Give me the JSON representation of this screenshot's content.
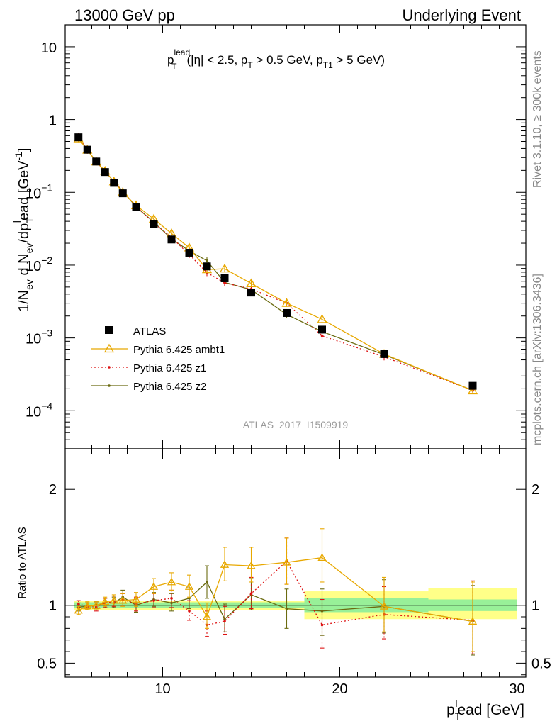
{
  "header": {
    "left": "13000 GeV pp",
    "right": "Underlying Event"
  },
  "side_labels": {
    "rivet": "Rivet 3.1.10, ≥ 300k events",
    "mcplots": "mcplots.cern.ch [arXiv:1306.3436]"
  },
  "analysis_id": "ATLAS_2017_I1509919",
  "colors": {
    "atlas": "#000000",
    "ambt1": "#e8a800",
    "z1": "#dd1111",
    "z2": "#6b6b10",
    "band_inner": "#98f098",
    "band_outer": "#ffff88"
  },
  "chart_data": [
    {
      "panel": "main",
      "type": "scatter",
      "title": "p_T^lead (|η| < 2.5, p_T > 0.5 GeV, p_T1 > 5 GeV)",
      "title_parts": {
        "p": "p",
        "lead": "lead",
        "T": "T",
        "body1": "(|η| < 2.5, p",
        "body2": " > 0.5 GeV, p",
        "T1": "T1",
        "body3": " > 5 GeV)"
      },
      "ylabel_parts": {
        "a": "1/N",
        "ev": "ev",
        "b": " d N",
        "c": "/dp",
        "T": "T",
        "l": "l",
        "d": "ead [GeV",
        "m1": "-1",
        "e": "]"
      },
      "y_scale": "log",
      "xlim": [
        4.5,
        30.5
      ],
      "ylim": [
        3e-05,
        20
      ],
      "y_ticks": [
        {
          "v": 10,
          "m": "10",
          "e": ""
        },
        {
          "v": 1,
          "m": "1",
          "e": ""
        },
        {
          "v": 0.1,
          "m": "10",
          "e": "−1"
        },
        {
          "v": 0.01,
          "m": "10",
          "e": "−2"
        },
        {
          "v": 0.001,
          "m": "10",
          "e": "−3"
        },
        {
          "v": 0.0001,
          "m": "10",
          "e": "−4"
        }
      ],
      "legend": {
        "position": "left-center",
        "entries": [
          "ATLAS",
          "Pythia 6.425 ambt1",
          "Pythia 6.425 z1",
          "Pythia 6.425 z2"
        ]
      },
      "series": [
        {
          "name": "ATLAS",
          "points": [
            {
              "x": 5.25,
              "y": 0.57
            },
            {
              "x": 5.75,
              "y": 0.385
            },
            {
              "x": 6.25,
              "y": 0.265
            },
            {
              "x": 6.75,
              "y": 0.19
            },
            {
              "x": 7.25,
              "y": 0.135
            },
            {
              "x": 7.75,
              "y": 0.097
            },
            {
              "x": 8.5,
              "y": 0.063
            },
            {
              "x": 9.5,
              "y": 0.037
            },
            {
              "x": 10.5,
              "y": 0.0225
            },
            {
              "x": 11.5,
              "y": 0.0148
            },
            {
              "x": 12.5,
              "y": 0.0096
            },
            {
              "x": 13.5,
              "y": 0.0066
            },
            {
              "x": 15,
              "y": 0.0042
            },
            {
              "x": 17,
              "y": 0.0022
            },
            {
              "x": 19,
              "y": 0.0013
            },
            {
              "x": 22.5,
              "y": 0.0006
            },
            {
              "x": 27.5,
              "y": 0.00022
            }
          ]
        },
        {
          "name": "Pythia 6.425 ambt1",
          "points": [
            {
              "x": 5.25,
              "y": 0.545
            },
            {
              "x": 5.75,
              "y": 0.382
            },
            {
              "x": 6.25,
              "y": 0.263
            },
            {
              "x": 6.75,
              "y": 0.196
            },
            {
              "x": 7.25,
              "y": 0.14
            },
            {
              "x": 7.75,
              "y": 0.1
            },
            {
              "x": 8.5,
              "y": 0.066
            },
            {
              "x": 9.5,
              "y": 0.043
            },
            {
              "x": 10.5,
              "y": 0.0272
            },
            {
              "x": 11.5,
              "y": 0.0173
            },
            {
              "x": 12.5,
              "y": 0.0087
            },
            {
              "x": 13.5,
              "y": 0.0089
            },
            {
              "x": 15,
              "y": 0.0056
            },
            {
              "x": 17,
              "y": 0.003
            },
            {
              "x": 19,
              "y": 0.0018
            },
            {
              "x": 22.5,
              "y": 0.0006
            },
            {
              "x": 27.5,
              "y": 0.000189
            }
          ]
        },
        {
          "name": "Pythia 6.425 z1",
          "points": [
            {
              "x": 5.25,
              "y": 0.58
            },
            {
              "x": 5.75,
              "y": 0.38
            },
            {
              "x": 6.25,
              "y": 0.262
            },
            {
              "x": 6.75,
              "y": 0.195
            },
            {
              "x": 7.25,
              "y": 0.14
            },
            {
              "x": 7.75,
              "y": 0.102
            },
            {
              "x": 8.5,
              "y": 0.064
            },
            {
              "x": 9.5,
              "y": 0.038
            },
            {
              "x": 10.5,
              "y": 0.024
            },
            {
              "x": 11.5,
              "y": 0.014
            },
            {
              "x": 12.5,
              "y": 0.0079
            },
            {
              "x": 13.5,
              "y": 0.0057
            },
            {
              "x": 15,
              "y": 0.0047
            },
            {
              "x": 17,
              "y": 0.003
            },
            {
              "x": 19,
              "y": 0.00107
            },
            {
              "x": 22.5,
              "y": 0.00055
            },
            {
              "x": 27.5,
              "y": 0.00019
            }
          ]
        },
        {
          "name": "Pythia 6.425 z2",
          "points": [
            {
              "x": 5.25,
              "y": 0.56
            },
            {
              "x": 5.75,
              "y": 0.38
            },
            {
              "x": 6.25,
              "y": 0.265
            },
            {
              "x": 6.75,
              "y": 0.195
            },
            {
              "x": 7.25,
              "y": 0.14
            },
            {
              "x": 7.75,
              "y": 0.104
            },
            {
              "x": 8.5,
              "y": 0.063
            },
            {
              "x": 9.5,
              "y": 0.039
            },
            {
              "x": 10.5,
              "y": 0.023
            },
            {
              "x": 11.5,
              "y": 0.0157
            },
            {
              "x": 12.5,
              "y": 0.0115
            },
            {
              "x": 13.5,
              "y": 0.0058
            },
            {
              "x": 15,
              "y": 0.0046
            },
            {
              "x": 17,
              "y": 0.0021
            },
            {
              "x": 19,
              "y": 0.00122
            },
            {
              "x": 22.5,
              "y": 0.00059
            },
            {
              "x": 27.5,
              "y": 0.00019
            }
          ]
        }
      ]
    },
    {
      "panel": "ratio",
      "type": "line",
      "ylabel": "Ratio to ATLAS",
      "xlabel_parts": {
        "p": "p",
        "T": "T",
        "l": "l",
        "rest": "ead [GeV]"
      },
      "xlim": [
        4.5,
        30.5
      ],
      "ylim": [
        0.38,
        2.35
      ],
      "x_ticks": [
        {
          "v": 10,
          "label": "10"
        },
        {
          "v": 20,
          "label": "20"
        },
        {
          "v": 30,
          "label": "30"
        }
      ],
      "y_ticks": [
        {
          "v": 2,
          "label": "2"
        },
        {
          "v": 1,
          "label": "1"
        },
        {
          "v": 0.5,
          "label": "0.5"
        }
      ],
      "uncertainty_band": [
        {
          "x0": 5,
          "x1": 18,
          "inner": [
            0.975,
            1.025
          ],
          "outer": [
            0.96,
            1.04
          ]
        },
        {
          "x0": 18,
          "x1": 25,
          "inner": [
            0.94,
            1.06
          ],
          "outer": [
            0.88,
            1.12
          ]
        },
        {
          "x0": 25,
          "x1": 30,
          "inner": [
            0.95,
            1.05
          ],
          "outer": [
            0.88,
            1.15
          ]
        }
      ],
      "series": [
        {
          "name": "Pythia 6.425 ambt1",
          "points": [
            {
              "x": 5.25,
              "y": 0.955,
              "lo": 0.92,
              "hi": 0.99
            },
            {
              "x": 5.75,
              "y": 0.993,
              "lo": 0.96,
              "hi": 1.03
            },
            {
              "x": 6.25,
              "y": 0.995,
              "lo": 0.96,
              "hi": 1.03
            },
            {
              "x": 6.75,
              "y": 1.03,
              "lo": 0.99,
              "hi": 1.07
            },
            {
              "x": 7.25,
              "y": 1.04,
              "lo": 1.0,
              "hi": 1.09
            },
            {
              "x": 7.75,
              "y": 1.04,
              "lo": 0.99,
              "hi": 1.1
            },
            {
              "x": 8.5,
              "y": 1.05,
              "lo": 0.99,
              "hi": 1.11
            },
            {
              "x": 9.5,
              "y": 1.16,
              "lo": 1.1,
              "hi": 1.23
            },
            {
              "x": 10.5,
              "y": 1.2,
              "lo": 1.13,
              "hi": 1.28
            },
            {
              "x": 11.5,
              "y": 1.16,
              "lo": 1.07,
              "hi": 1.26
            },
            {
              "x": 12.5,
              "y": 0.9,
              "lo": 0.8,
              "hi": 1.02
            },
            {
              "x": 13.5,
              "y": 1.35,
              "lo": 1.21,
              "hi": 1.5
            },
            {
              "x": 15,
              "y": 1.34,
              "lo": 1.2,
              "hi": 1.5
            },
            {
              "x": 17,
              "y": 1.37,
              "lo": 1.18,
              "hi": 1.58
            },
            {
              "x": 19,
              "y": 1.41,
              "lo": 1.2,
              "hi": 1.66
            },
            {
              "x": 22.5,
              "y": 0.99,
              "lo": 0.77,
              "hi": 1.24
            },
            {
              "x": 27.5,
              "y": 0.86,
              "lo": 0.6,
              "hi": 1.2
            }
          ]
        },
        {
          "name": "Pythia 6.425 z1",
          "points": [
            {
              "x": 5.25,
              "y": 1.01,
              "lo": 0.98,
              "hi": 1.04
            },
            {
              "x": 5.75,
              "y": 0.99,
              "lo": 0.96,
              "hi": 1.02
            },
            {
              "x": 6.25,
              "y": 0.985,
              "lo": 0.95,
              "hi": 1.02
            },
            {
              "x": 6.75,
              "y": 1.02,
              "lo": 0.98,
              "hi": 1.06
            },
            {
              "x": 7.25,
              "y": 1.03,
              "lo": 0.99,
              "hi": 1.08
            },
            {
              "x": 7.75,
              "y": 1.05,
              "lo": 1.0,
              "hi": 1.1
            },
            {
              "x": 8.5,
              "y": 1.01,
              "lo": 0.95,
              "hi": 1.07
            },
            {
              "x": 9.5,
              "y": 1.04,
              "lo": 0.98,
              "hi": 1.1
            },
            {
              "x": 10.5,
              "y": 1.06,
              "lo": 0.98,
              "hi": 1.13
            },
            {
              "x": 11.5,
              "y": 0.95,
              "lo": 0.87,
              "hi": 1.04
            },
            {
              "x": 12.5,
              "y": 0.83,
              "lo": 0.73,
              "hi": 0.95
            },
            {
              "x": 13.5,
              "y": 0.86,
              "lo": 0.75,
              "hi": 0.99
            },
            {
              "x": 15,
              "y": 1.1,
              "lo": 0.97,
              "hi": 1.24
            },
            {
              "x": 17,
              "y": 1.38,
              "lo": 1.19,
              "hi": 1.58
            },
            {
              "x": 19,
              "y": 0.83,
              "lo": 0.63,
              "hi": 1.05
            },
            {
              "x": 22.5,
              "y": 0.92,
              "lo": 0.71,
              "hi": 1.16
            },
            {
              "x": 27.5,
              "y": 0.87,
              "lo": 0.58,
              "hi": 1.21
            }
          ]
        },
        {
          "name": "Pythia 6.425 z2",
          "points": [
            {
              "x": 5.25,
              "y": 0.985,
              "lo": 0.95,
              "hi": 1.02
            },
            {
              "x": 5.75,
              "y": 0.99,
              "lo": 0.96,
              "hi": 1.02
            },
            {
              "x": 6.25,
              "y": 1.0,
              "lo": 0.97,
              "hi": 1.03
            },
            {
              "x": 6.75,
              "y": 1.02,
              "lo": 0.98,
              "hi": 1.06
            },
            {
              "x": 7.25,
              "y": 1.02,
              "lo": 0.98,
              "hi": 1.07
            },
            {
              "x": 7.75,
              "y": 1.07,
              "lo": 1.02,
              "hi": 1.13
            },
            {
              "x": 8.5,
              "y": 1.0,
              "lo": 0.94,
              "hi": 1.06
            },
            {
              "x": 9.5,
              "y": 1.05,
              "lo": 0.99,
              "hi": 1.11
            },
            {
              "x": 10.5,
              "y": 1.02,
              "lo": 0.95,
              "hi": 1.1
            },
            {
              "x": 11.5,
              "y": 1.06,
              "lo": 0.97,
              "hi": 1.15
            },
            {
              "x": 12.5,
              "y": 1.2,
              "lo": 1.06,
              "hi": 1.34
            },
            {
              "x": 13.5,
              "y": 0.88,
              "lo": 0.77,
              "hi": 1.01
            },
            {
              "x": 15,
              "y": 1.09,
              "lo": 0.96,
              "hi": 1.23
            },
            {
              "x": 17,
              "y": 0.97,
              "lo": 0.8,
              "hi": 1.14
            },
            {
              "x": 19,
              "y": 0.95,
              "lo": 0.74,
              "hi": 1.14
            },
            {
              "x": 22.5,
              "y": 0.99,
              "lo": 0.76,
              "hi": 1.22
            },
            {
              "x": 27.5,
              "y": 0.86,
              "lo": 0.57,
              "hi": 1.17
            }
          ]
        }
      ]
    }
  ]
}
